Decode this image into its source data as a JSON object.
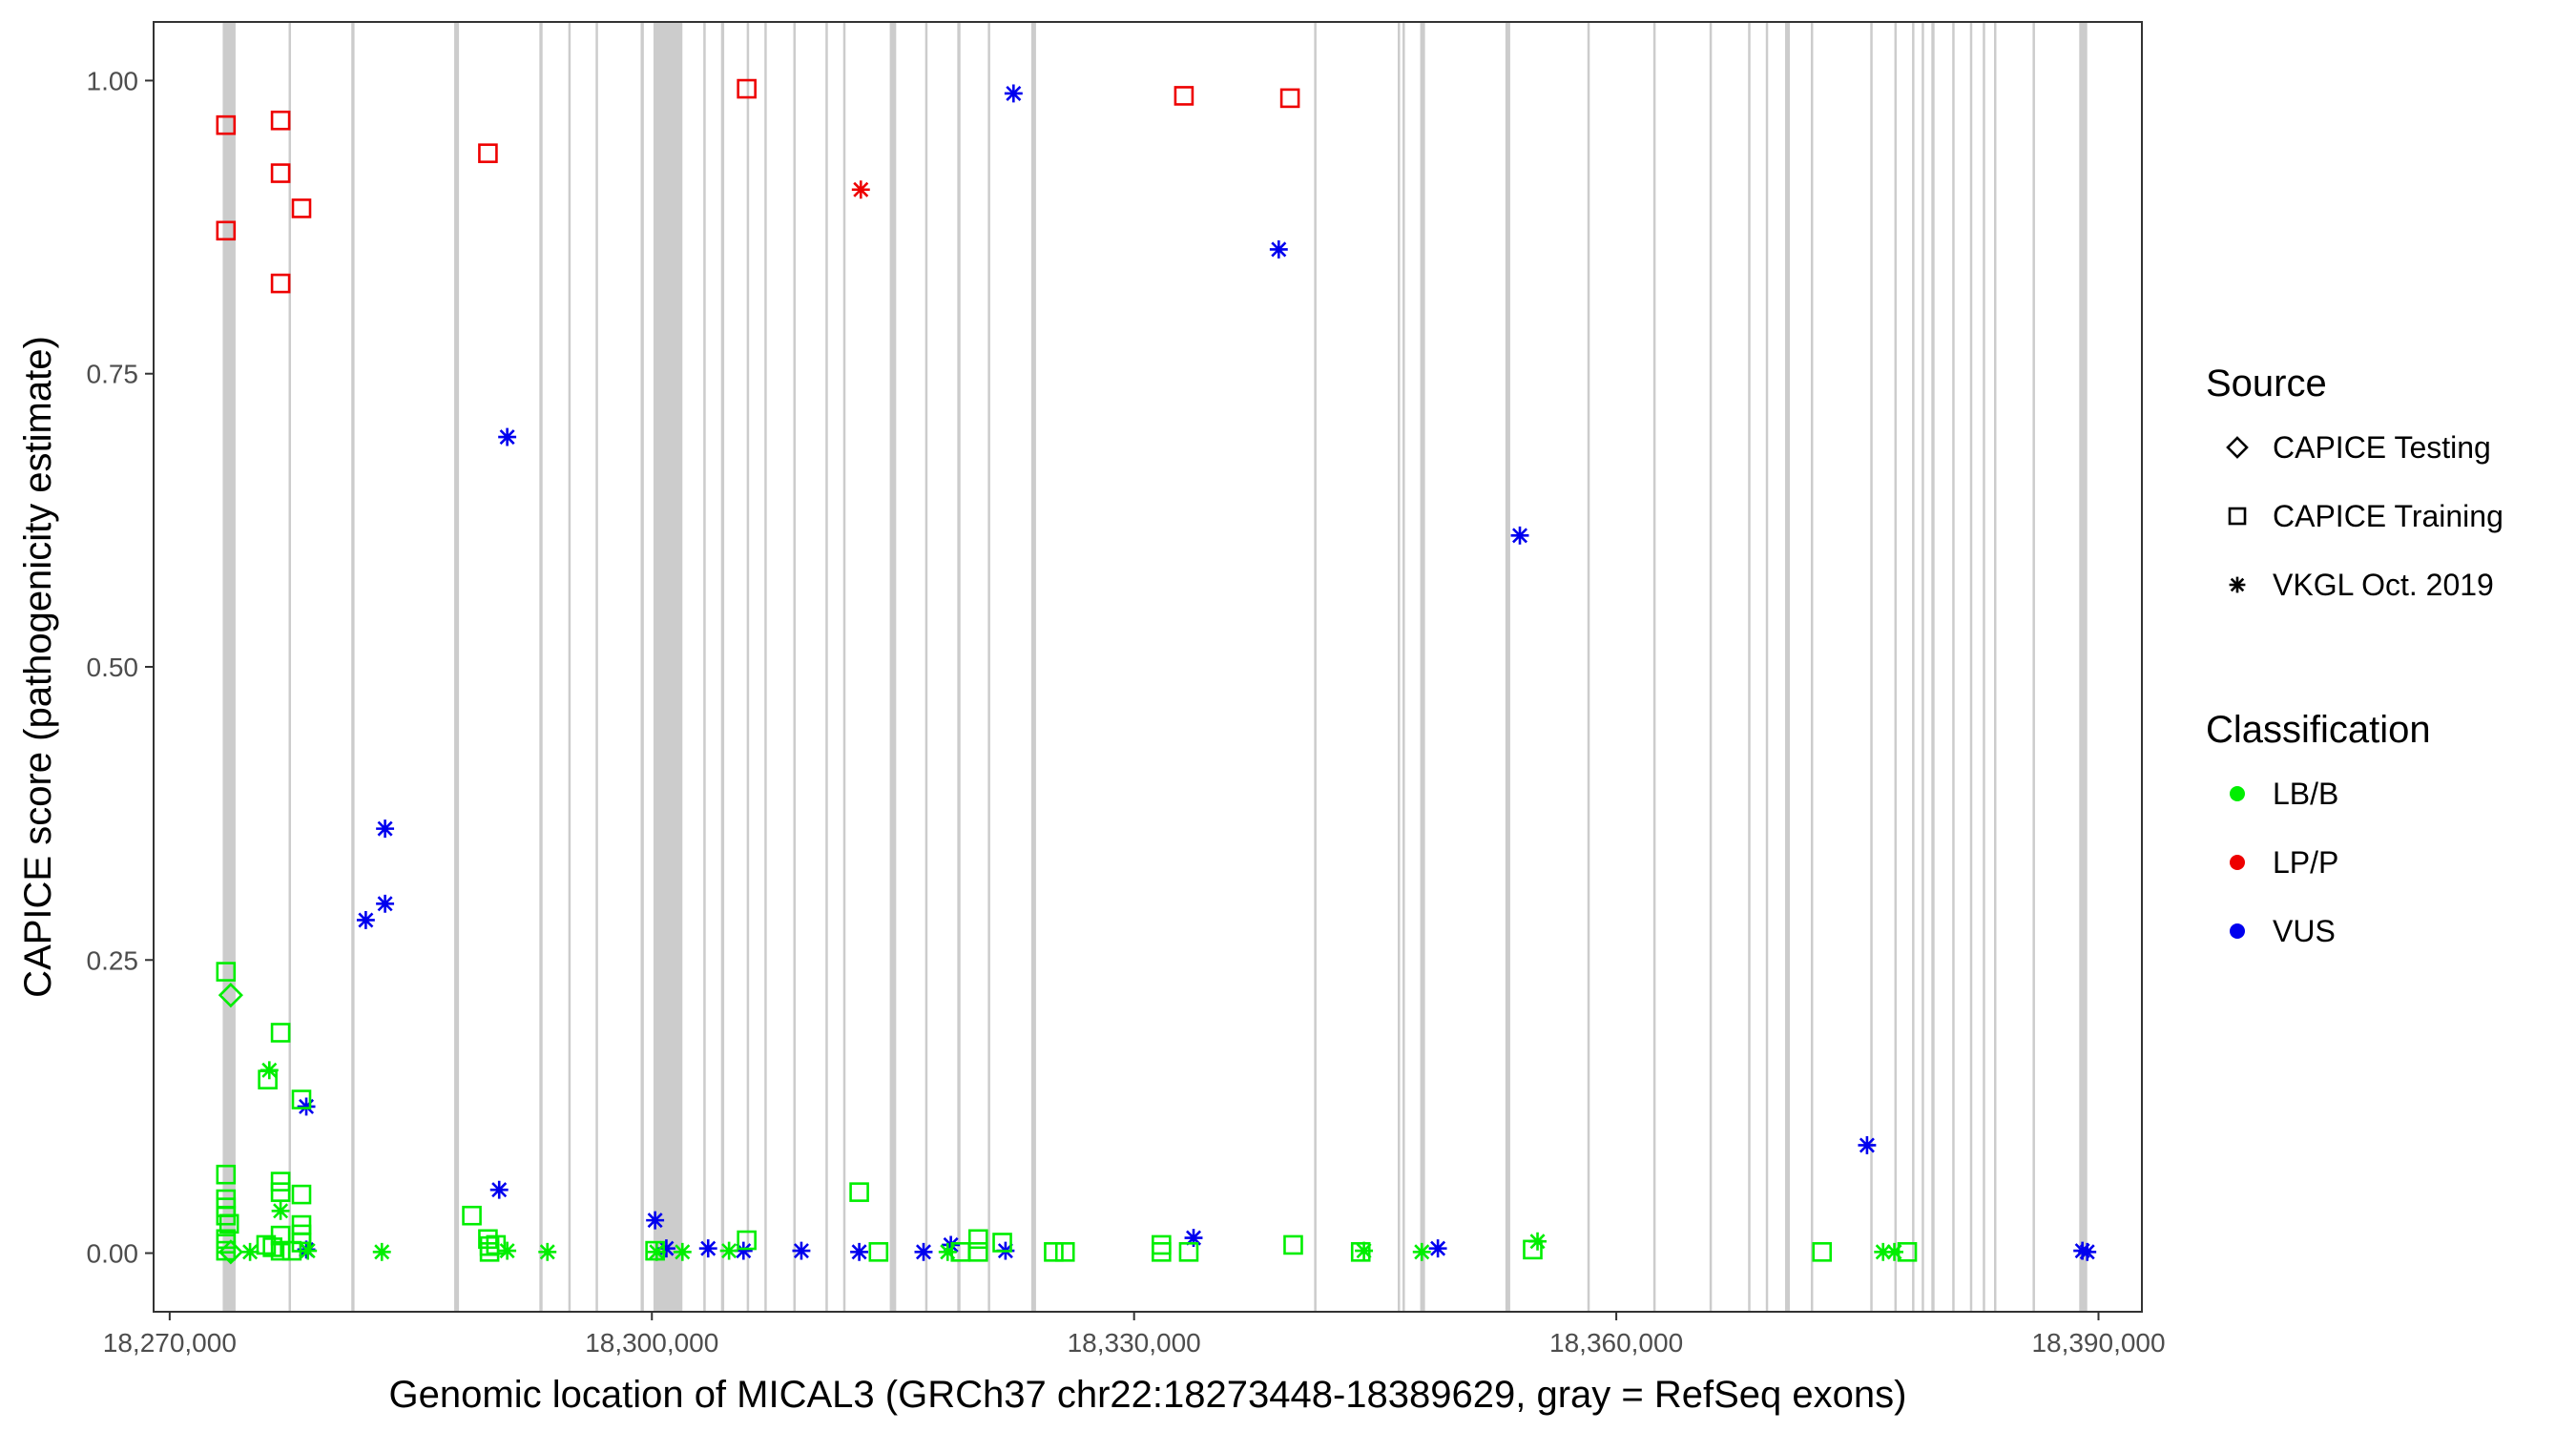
{
  "chart_data": {
    "type": "scatter",
    "xlabel": "Genomic location of MICAL3 (GRCh37 chr22:18273448-18389629, gray = RefSeq exons)",
    "ylabel": "CAPICE score (pathogenicity estimate)",
    "xlim": [
      18269000,
      18392700
    ],
    "ylim": [
      -0.05,
      1.05
    ],
    "x_ticks": [
      18270000,
      18300000,
      18330000,
      18360000,
      18390000
    ],
    "x_tick_labels": [
      "18,270,000",
      "18,300,000",
      "18,330,000",
      "18,360,000",
      "18,390,000"
    ],
    "y_ticks": [
      0,
      0.25,
      0.5,
      0.75,
      1.0
    ],
    "y_tick_labels": [
      "0.00",
      "0.25",
      "0.50",
      "0.75",
      "1.00"
    ],
    "grid": false,
    "legend_position": "right",
    "exons": [
      [
        18273300,
        18274100
      ],
      [
        18277400,
        18277500
      ],
      [
        18281300,
        18281500
      ],
      [
        18287700,
        18288000
      ],
      [
        18293000,
        18293200
      ],
      [
        18294800,
        18294900
      ],
      [
        18296500,
        18296600
      ],
      [
        18299300,
        18299500
      ],
      [
        18300100,
        18301900
      ],
      [
        18303200,
        18303300
      ],
      [
        18304300,
        18304500
      ],
      [
        18305900,
        18306000
      ],
      [
        18307000,
        18307100
      ],
      [
        18308800,
        18308900
      ],
      [
        18310800,
        18310900
      ],
      [
        18311900,
        18312000
      ],
      [
        18314800,
        18315200
      ],
      [
        18317000,
        18317100
      ],
      [
        18319000,
        18319200
      ],
      [
        18320900,
        18321000
      ],
      [
        18323600,
        18323900
      ],
      [
        18341200,
        18341300
      ],
      [
        18346400,
        18346500
      ],
      [
        18346700,
        18346800
      ],
      [
        18347800,
        18348100
      ],
      [
        18353100,
        18353400
      ],
      [
        18358200,
        18358300
      ],
      [
        18362300,
        18362400
      ],
      [
        18365800,
        18365900
      ],
      [
        18368200,
        18368300
      ],
      [
        18369300,
        18369400
      ],
      [
        18370500,
        18370800
      ],
      [
        18372100,
        18372200
      ],
      [
        18375800,
        18375900
      ],
      [
        18377300,
        18377400
      ],
      [
        18378400,
        18378500
      ],
      [
        18379000,
        18379100
      ],
      [
        18379600,
        18379800
      ],
      [
        18380900,
        18381000
      ],
      [
        18382000,
        18382100
      ],
      [
        18382800,
        18382900
      ],
      [
        18383500,
        18383600
      ],
      [
        18385900,
        18386000
      ],
      [
        18388800,
        18389300
      ]
    ],
    "shape_legend": {
      "title": "Source",
      "items": [
        {
          "label": "CAPICE Testing",
          "shape": "diamond"
        },
        {
          "label": "CAPICE Training",
          "shape": "square"
        },
        {
          "label": "VKGL Oct. 2019",
          "shape": "asterisk"
        }
      ]
    },
    "color_legend": {
      "title": "Classification",
      "items": [
        {
          "label": "LB/B",
          "color": "#00ee00"
        },
        {
          "label": "LP/P",
          "color": "#ee0000"
        },
        {
          "label": "VUS",
          "color": "#0000ee"
        }
      ]
    },
    "series": [
      {
        "source": "CAPICE Training",
        "classification": "LP/P",
        "shape": "square",
        "color": "#ee0000",
        "points": [
          [
            18273500,
            0.962
          ],
          [
            18273500,
            0.872
          ],
          [
            18276900,
            0.966
          ],
          [
            18276900,
            0.921
          ],
          [
            18276900,
            0.827
          ],
          [
            18278200,
            0.891
          ],
          [
            18289800,
            0.938
          ],
          [
            18305900,
            0.993
          ],
          [
            18333100,
            0.987
          ],
          [
            18339700,
            0.985
          ]
        ]
      },
      {
        "source": "VKGL Oct. 2019",
        "classification": "LP/P",
        "shape": "asterisk",
        "color": "#ee0000",
        "points": [
          [
            18313000,
            0.907
          ]
        ]
      },
      {
        "source": "VKGL Oct. 2019",
        "classification": "VUS",
        "shape": "asterisk",
        "color": "#0000ee",
        "points": [
          [
            18322500,
            0.989
          ],
          [
            18339000,
            0.856
          ],
          [
            18291000,
            0.696
          ],
          [
            18354000,
            0.612
          ],
          [
            18283400,
            0.362
          ],
          [
            18283400,
            0.298
          ],
          [
            18282200,
            0.284
          ],
          [
            18278500,
            0.125
          ],
          [
            18375600,
            0.092
          ],
          [
            18290500,
            0.054
          ],
          [
            18300200,
            0.028
          ],
          [
            18333700,
            0.013
          ],
          [
            18318600,
            0.007
          ],
          [
            18300900,
            0.004
          ],
          [
            18303500,
            0.004
          ],
          [
            18278500,
            0.003
          ],
          [
            18305700,
            0.002
          ],
          [
            18309300,
            0.002
          ],
          [
            18312900,
            0.001
          ],
          [
            18316900,
            0.001
          ],
          [
            18322000,
            0.002
          ],
          [
            18348900,
            0.004
          ],
          [
            18389000,
            0.002
          ],
          [
            18389300,
            0.001
          ]
        ]
      },
      {
        "source": "VKGL Oct. 2019",
        "classification": "LB/B",
        "shape": "asterisk",
        "color": "#00ee00",
        "points": [
          [
            18275000,
            0.001
          ],
          [
            18276200,
            0.156
          ],
          [
            18276900,
            0.036
          ],
          [
            18283200,
            0.001
          ],
          [
            18291000,
            0.002
          ],
          [
            18293500,
            0.001
          ],
          [
            18300300,
            0.001
          ],
          [
            18301900,
            0.001
          ],
          [
            18304800,
            0.002
          ],
          [
            18318400,
            0.001
          ],
          [
            18344300,
            0.002
          ],
          [
            18347900,
            0.001
          ],
          [
            18355100,
            0.01
          ],
          [
            18376600,
            0.001
          ],
          [
            18377300,
            0.001
          ],
          [
            18278600,
            0.002
          ]
        ]
      },
      {
        "source": "CAPICE Training",
        "classification": "LB/B",
        "shape": "square",
        "color": "#00ee00",
        "points": [
          [
            18273500,
            0.24
          ],
          [
            18276100,
            0.148
          ],
          [
            18276900,
            0.188
          ],
          [
            18278200,
            0.131
          ],
          [
            18273500,
            0.067
          ],
          [
            18276900,
            0.061
          ],
          [
            18276900,
            0.052
          ],
          [
            18278200,
            0.05
          ],
          [
            18273500,
            0.046
          ],
          [
            18273500,
            0.039
          ],
          [
            18273500,
            0.032
          ],
          [
            18273700,
            0.025
          ],
          [
            18278200,
            0.024
          ],
          [
            18278200,
            0.016
          ],
          [
            18276900,
            0.015
          ],
          [
            18278200,
            0.009
          ],
          [
            18273500,
            0.012
          ],
          [
            18273500,
            0.008
          ],
          [
            18276000,
            0.007
          ],
          [
            18276400,
            0.005
          ],
          [
            18273500,
            0.002
          ],
          [
            18276900,
            0.002
          ],
          [
            18277600,
            0.002
          ],
          [
            18288800,
            0.032
          ],
          [
            18289800,
            0.012
          ],
          [
            18289900,
            0.006
          ],
          [
            18290300,
            0.007
          ],
          [
            18289900,
            0.001
          ],
          [
            18300200,
            0.002
          ],
          [
            18305900,
            0.011
          ],
          [
            18312900,
            0.052
          ],
          [
            18314100,
            0.001
          ],
          [
            18319200,
            0.001
          ],
          [
            18320300,
            0.012
          ],
          [
            18320300,
            0.001
          ],
          [
            18321800,
            0.009
          ],
          [
            18325000,
            0.001
          ],
          [
            18325700,
            0.001
          ],
          [
            18331700,
            0.007
          ],
          [
            18331700,
            0.001
          ],
          [
            18333400,
            0.001
          ],
          [
            18339900,
            0.007
          ],
          [
            18344100,
            0.001
          ],
          [
            18354800,
            0.003
          ],
          [
            18372800,
            0.001
          ],
          [
            18378100,
            0.001
          ]
        ]
      },
      {
        "source": "CAPICE Testing",
        "classification": "LB/B",
        "shape": "diamond",
        "color": "#00ee00",
        "points": [
          [
            18273800,
            0.22
          ],
          [
            18273800,
            0.001
          ]
        ]
      }
    ]
  }
}
